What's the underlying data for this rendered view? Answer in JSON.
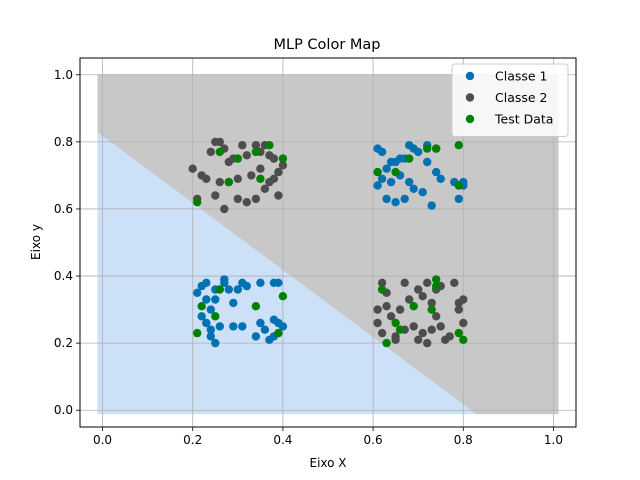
{
  "chart_data": {
    "type": "scatter",
    "title": "MLP Color Map",
    "xlabel": "Eixo X",
    "ylabel": "Eixo y",
    "xlim": [
      -0.05,
      1.05
    ],
    "ylim": [
      -0.05,
      1.05
    ],
    "x_ticks": [
      "0.0",
      "0.2",
      "0.4",
      "0.6",
      "0.8",
      "1.0"
    ],
    "y_ticks": [
      "0.0",
      "0.2",
      "0.4",
      "0.6",
      "0.8",
      "1.0"
    ],
    "grid": true,
    "legend_position": "top-right",
    "decision_regions": [
      {
        "color": "#cce0f7",
        "polygon": [
          [
            -0.01,
            -0.01
          ],
          [
            0.83,
            -0.01
          ],
          [
            -0.01,
            0.83
          ]
        ]
      },
      {
        "color": "#c8c8c8",
        "polygon": [
          [
            -0.01,
            0.83
          ],
          [
            -0.01,
            1.0
          ],
          [
            1.01,
            1.0
          ],
          [
            1.01,
            -0.01
          ],
          [
            0.83,
            -0.01
          ]
        ]
      }
    ],
    "series": [
      {
        "name": "Classe 1",
        "color": "#0072b2",
        "points": [
          [
            0.21,
            0.35
          ],
          [
            0.22,
            0.37
          ],
          [
            0.23,
            0.38
          ],
          [
            0.25,
            0.36
          ],
          [
            0.24,
            0.3
          ],
          [
            0.22,
            0.28
          ],
          [
            0.23,
            0.26
          ],
          [
            0.24,
            0.24
          ],
          [
            0.24,
            0.22
          ],
          [
            0.25,
            0.2
          ],
          [
            0.26,
            0.25
          ],
          [
            0.27,
            0.38
          ],
          [
            0.27,
            0.39
          ],
          [
            0.28,
            0.36
          ],
          [
            0.29,
            0.25
          ],
          [
            0.29,
            0.32
          ],
          [
            0.3,
            0.36
          ],
          [
            0.31,
            0.38
          ],
          [
            0.32,
            0.37
          ],
          [
            0.31,
            0.25
          ],
          [
            0.34,
            0.22
          ],
          [
            0.35,
            0.38
          ],
          [
            0.35,
            0.26
          ],
          [
            0.36,
            0.24
          ],
          [
            0.37,
            0.21
          ],
          [
            0.38,
            0.38
          ],
          [
            0.39,
            0.38
          ],
          [
            0.38,
            0.27
          ],
          [
            0.39,
            0.26
          ],
          [
            0.4,
            0.25
          ],
          [
            0.38,
            0.22
          ],
          [
            0.25,
            0.33
          ],
          [
            0.23,
            0.33
          ],
          [
            0.61,
            0.78
          ],
          [
            0.62,
            0.77
          ],
          [
            0.61,
            0.67
          ],
          [
            0.62,
            0.69
          ],
          [
            0.63,
            0.72
          ],
          [
            0.63,
            0.63
          ],
          [
            0.64,
            0.74
          ],
          [
            0.65,
            0.74
          ],
          [
            0.66,
            0.75
          ],
          [
            0.67,
            0.75
          ],
          [
            0.66,
            0.7
          ],
          [
            0.68,
            0.68
          ],
          [
            0.69,
            0.66
          ],
          [
            0.68,
            0.79
          ],
          [
            0.69,
            0.78
          ],
          [
            0.7,
            0.77
          ],
          [
            0.71,
            0.65
          ],
          [
            0.72,
            0.74
          ],
          [
            0.72,
            0.79
          ],
          [
            0.73,
            0.61
          ],
          [
            0.74,
            0.78
          ],
          [
            0.74,
            0.71
          ],
          [
            0.75,
            0.69
          ],
          [
            0.78,
            0.68
          ],
          [
            0.79,
            0.63
          ],
          [
            0.8,
            0.68
          ],
          [
            0.8,
            0.67
          ],
          [
            0.65,
            0.62
          ],
          [
            0.67,
            0.63
          ],
          [
            0.64,
            0.68
          ]
        ]
      },
      {
        "name": "Classe 2",
        "color": "#4d4d4d",
        "points": [
          [
            0.2,
            0.72
          ],
          [
            0.21,
            0.63
          ],
          [
            0.22,
            0.7
          ],
          [
            0.23,
            0.69
          ],
          [
            0.24,
            0.77
          ],
          [
            0.25,
            0.8
          ],
          [
            0.25,
            0.64
          ],
          [
            0.26,
            0.8
          ],
          [
            0.27,
            0.78
          ],
          [
            0.27,
            0.6
          ],
          [
            0.28,
            0.74
          ],
          [
            0.28,
            0.68
          ],
          [
            0.29,
            0.75
          ],
          [
            0.3,
            0.69
          ],
          [
            0.3,
            0.63
          ],
          [
            0.31,
            0.79
          ],
          [
            0.32,
            0.76
          ],
          [
            0.32,
            0.62
          ],
          [
            0.33,
            0.7
          ],
          [
            0.34,
            0.79
          ],
          [
            0.34,
            0.63
          ],
          [
            0.35,
            0.72
          ],
          [
            0.36,
            0.79
          ],
          [
            0.36,
            0.66
          ],
          [
            0.37,
            0.68
          ],
          [
            0.37,
            0.76
          ],
          [
            0.38,
            0.75
          ],
          [
            0.38,
            0.69
          ],
          [
            0.39,
            0.71
          ],
          [
            0.39,
            0.64
          ],
          [
            0.4,
            0.73
          ],
          [
            0.35,
            0.77
          ],
          [
            0.26,
            0.68
          ],
          [
            0.61,
            0.3
          ],
          [
            0.61,
            0.26
          ],
          [
            0.62,
            0.38
          ],
          [
            0.62,
            0.23
          ],
          [
            0.63,
            0.35
          ],
          [
            0.63,
            0.31
          ],
          [
            0.64,
            0.28
          ],
          [
            0.65,
            0.22
          ],
          [
            0.65,
            0.21
          ],
          [
            0.66,
            0.3
          ],
          [
            0.67,
            0.38
          ],
          [
            0.67,
            0.24
          ],
          [
            0.68,
            0.33
          ],
          [
            0.69,
            0.25
          ],
          [
            0.7,
            0.36
          ],
          [
            0.7,
            0.21
          ],
          [
            0.71,
            0.23
          ],
          [
            0.71,
            0.34
          ],
          [
            0.72,
            0.38
          ],
          [
            0.72,
            0.2
          ],
          [
            0.73,
            0.32
          ],
          [
            0.73,
            0.24
          ],
          [
            0.74,
            0.28
          ],
          [
            0.74,
            0.36
          ],
          [
            0.75,
            0.25
          ],
          [
            0.76,
            0.21
          ],
          [
            0.78,
            0.38
          ],
          [
            0.79,
            0.32
          ],
          [
            0.79,
            0.3
          ],
          [
            0.8,
            0.33
          ],
          [
            0.8,
            0.26
          ],
          [
            0.77,
            0.22
          ],
          [
            0.75,
            0.37
          ]
        ]
      },
      {
        "name": "Test Data",
        "color": "#008000",
        "points": [
          [
            0.21,
            0.62
          ],
          [
            0.26,
            0.77
          ],
          [
            0.28,
            0.68
          ],
          [
            0.3,
            0.75
          ],
          [
            0.34,
            0.77
          ],
          [
            0.35,
            0.69
          ],
          [
            0.37,
            0.79
          ],
          [
            0.4,
            0.75
          ],
          [
            0.21,
            0.23
          ],
          [
            0.22,
            0.31
          ],
          [
            0.26,
            0.36
          ],
          [
            0.25,
            0.28
          ],
          [
            0.34,
            0.31
          ],
          [
            0.39,
            0.23
          ],
          [
            0.4,
            0.34
          ],
          [
            0.61,
            0.71
          ],
          [
            0.65,
            0.71
          ],
          [
            0.68,
            0.75
          ],
          [
            0.72,
            0.78
          ],
          [
            0.74,
            0.78
          ],
          [
            0.79,
            0.79
          ],
          [
            0.79,
            0.67
          ],
          [
            0.62,
            0.36
          ],
          [
            0.63,
            0.2
          ],
          [
            0.65,
            0.26
          ],
          [
            0.66,
            0.24
          ],
          [
            0.69,
            0.31
          ],
          [
            0.73,
            0.3
          ],
          [
            0.74,
            0.37
          ],
          [
            0.74,
            0.39
          ],
          [
            0.79,
            0.23
          ],
          [
            0.8,
            0.21
          ]
        ]
      }
    ]
  }
}
